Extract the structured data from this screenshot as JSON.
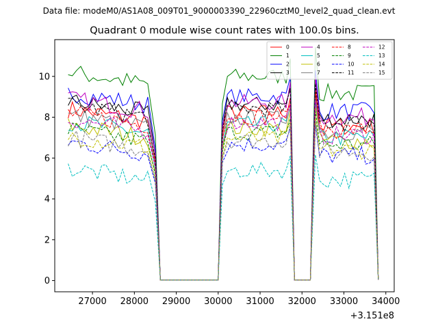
{
  "chart_data": {
    "type": "line",
    "suptitle": "Data file: modeM0/AS1A08_009T01_9000003390_22960cztM0_level2_quad_clean.evt",
    "title": "Quadrant 0 module wise count rates with 100.0s bins.",
    "x_offset_label": "+3.151e8",
    "xlim": [
      26100,
      34200
    ],
    "ylim": [
      -0.55,
      11.8
    ],
    "x_ticks": [
      27000,
      28000,
      29000,
      30000,
      31000,
      32000,
      33000,
      34000
    ],
    "y_ticks": [
      0,
      2,
      4,
      6,
      8,
      10
    ],
    "bin_width": 100,
    "segments": [
      {
        "start": 26420,
        "end": 28380
      },
      {
        "start": 30220,
        "end": 31620
      },
      {
        "start": 32420,
        "end": 33720
      }
    ],
    "gap_points": [
      28500,
      28620,
      30000,
      30100,
      31720,
      31820,
      32000,
      32200,
      32320,
      33820
    ],
    "series": [
      {
        "name": "0",
        "color": "#ff0000",
        "dash": "solid",
        "level": 8.4
      },
      {
        "name": "1",
        "color": "#008000",
        "dash": "solid",
        "level": 10.2
      },
      {
        "name": "2",
        "color": "#0000ff",
        "dash": "solid",
        "level": 9.2
      },
      {
        "name": "3",
        "color": "#000000",
        "dash": "solid",
        "level": 8.8
      },
      {
        "name": "4",
        "color": "#bf00bf",
        "dash": "solid",
        "level": 8.9
      },
      {
        "name": "5",
        "color": "#00bfbf",
        "dash": "solid",
        "level": 7.8
      },
      {
        "name": "6",
        "color": "#bfbf00",
        "dash": "solid",
        "level": 7.6
      },
      {
        "name": "7",
        "color": "#808080",
        "dash": "solid",
        "level": 8.1
      },
      {
        "name": "8",
        "color": "#ff0000",
        "dash": "dashed",
        "level": 8.2
      },
      {
        "name": "9",
        "color": "#008000",
        "dash": "dashed",
        "level": 7.4
      },
      {
        "name": "10",
        "color": "#0000ff",
        "dash": "dashed",
        "level": 6.8
      },
      {
        "name": "11",
        "color": "#000000",
        "dash": "dashed",
        "level": 8.6
      },
      {
        "name": "12",
        "color": "#bf00bf",
        "dash": "dashed",
        "level": 7.9
      },
      {
        "name": "13",
        "color": "#00bfbf",
        "dash": "dashed",
        "level": 5.5
      },
      {
        "name": "14",
        "color": "#bfbf00",
        "dash": "dashed",
        "level": 7.1
      },
      {
        "name": "15",
        "color": "#808080",
        "dash": "dashed",
        "level": 7.0
      }
    ]
  }
}
